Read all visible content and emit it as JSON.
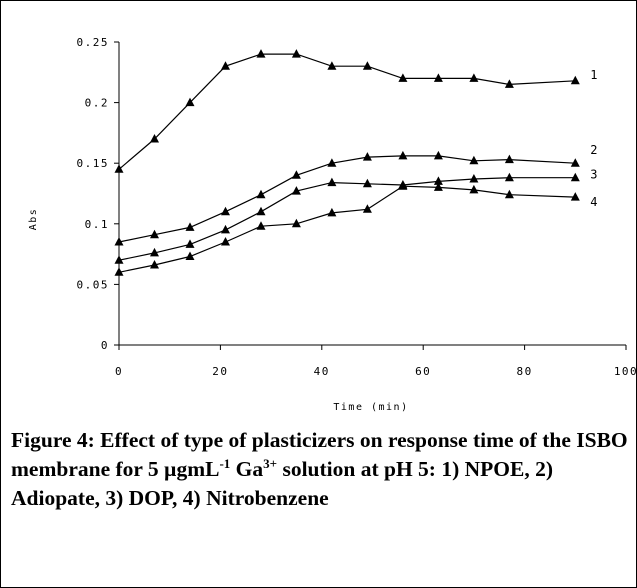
{
  "chart_data": {
    "type": "line",
    "xlabel": "Time (min)",
    "ylabel": "Abs",
    "xlim": [
      0,
      100
    ],
    "ylim": [
      0,
      0.25
    ],
    "x_ticks": [
      "0",
      "20",
      "40",
      "60",
      "80",
      "100"
    ],
    "y_ticks": [
      "0",
      "0.05",
      "0.1",
      "0.15",
      "0.2",
      "0.25"
    ],
    "grid": false,
    "marker": "triangle",
    "series_color": "#000000",
    "series": [
      {
        "name": "1",
        "x": [
          0,
          7,
          14,
          21,
          28,
          35,
          42,
          49,
          56,
          63,
          70,
          77,
          90
        ],
        "values": [
          0.145,
          0.17,
          0.2,
          0.23,
          0.24,
          0.24,
          0.23,
          0.23,
          0.22,
          0.22,
          0.22,
          0.215,
          0.218
        ]
      },
      {
        "name": "2",
        "x": [
          0,
          7,
          14,
          21,
          28,
          35,
          42,
          49,
          56,
          63,
          70,
          77,
          90
        ],
        "values": [
          0.085,
          0.091,
          0.097,
          0.11,
          0.124,
          0.14,
          0.15,
          0.155,
          0.156,
          0.156,
          0.152,
          0.153,
          0.15
        ]
      },
      {
        "name": "3",
        "x": [
          0,
          7,
          14,
          21,
          28,
          35,
          42,
          49,
          56,
          63,
          70,
          77,
          90
        ],
        "values": [
          0.07,
          0.076,
          0.083,
          0.095,
          0.11,
          0.127,
          0.134,
          0.133,
          0.132,
          0.135,
          0.137,
          0.138,
          0.138
        ]
      },
      {
        "name": "4",
        "x": [
          0,
          7,
          14,
          21,
          28,
          35,
          42,
          49,
          56,
          63,
          70,
          77,
          90
        ],
        "values": [
          0.06,
          0.066,
          0.073,
          0.085,
          0.098,
          0.1,
          0.109,
          0.112,
          0.131,
          0.13,
          0.128,
          0.124,
          0.122
        ]
      }
    ]
  },
  "caption": {
    "part1": "Figure 4: Effect of type of plasticizers on response time of the ISBO membrane for 5 µgmL",
    "sup1": "-1",
    "part2": " Ga",
    "sup2": "3+",
    "part3": " solution at pH 5: 1) NPOE, 2) Adiopate, 3) DOP, 4) Nitrobenzene"
  }
}
